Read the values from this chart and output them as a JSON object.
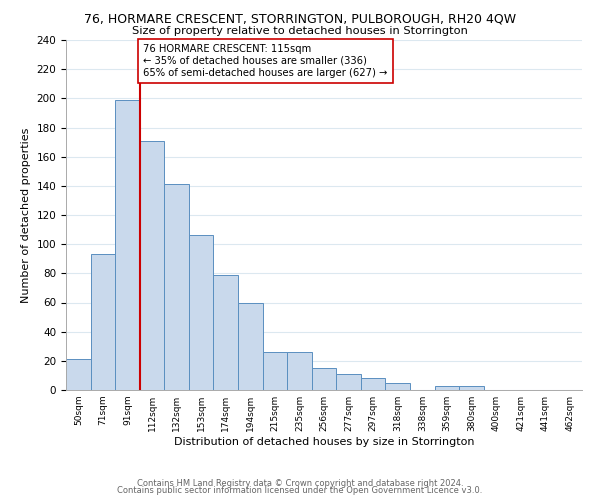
{
  "title": "76, HORMARE CRESCENT, STORRINGTON, PULBOROUGH, RH20 4QW",
  "subtitle": "Size of property relative to detached houses in Storrington",
  "xlabel": "Distribution of detached houses by size in Storrington",
  "ylabel": "Number of detached properties",
  "bar_labels": [
    "50sqm",
    "71sqm",
    "91sqm",
    "112sqm",
    "132sqm",
    "153sqm",
    "174sqm",
    "194sqm",
    "215sqm",
    "235sqm",
    "256sqm",
    "277sqm",
    "297sqm",
    "318sqm",
    "338sqm",
    "359sqm",
    "380sqm",
    "400sqm",
    "421sqm",
    "441sqm",
    "462sqm"
  ],
  "bar_values": [
    21,
    93,
    199,
    171,
    141,
    106,
    79,
    60,
    26,
    26,
    15,
    11,
    8,
    5,
    0,
    3,
    3,
    0,
    0,
    0,
    0
  ],
  "bar_color": "#c9d9ec",
  "bar_edge_color": "#5a8fc0",
  "vline_color": "#cc0000",
  "annotation_text": "76 HORMARE CRESCENT: 115sqm\n← 35% of detached houses are smaller (336)\n65% of semi-detached houses are larger (627) →",
  "annotation_box_color": "#ffffff",
  "annotation_box_edge": "#cc0000",
  "ylim": [
    0,
    240
  ],
  "yticks": [
    0,
    20,
    40,
    60,
    80,
    100,
    120,
    140,
    160,
    180,
    200,
    220,
    240
  ],
  "footer1": "Contains HM Land Registry data © Crown copyright and database right 2024.",
  "footer2": "Contains public sector information licensed under the Open Government Licence v3.0.",
  "bg_color": "#ffffff",
  "grid_color": "#dce8f0"
}
